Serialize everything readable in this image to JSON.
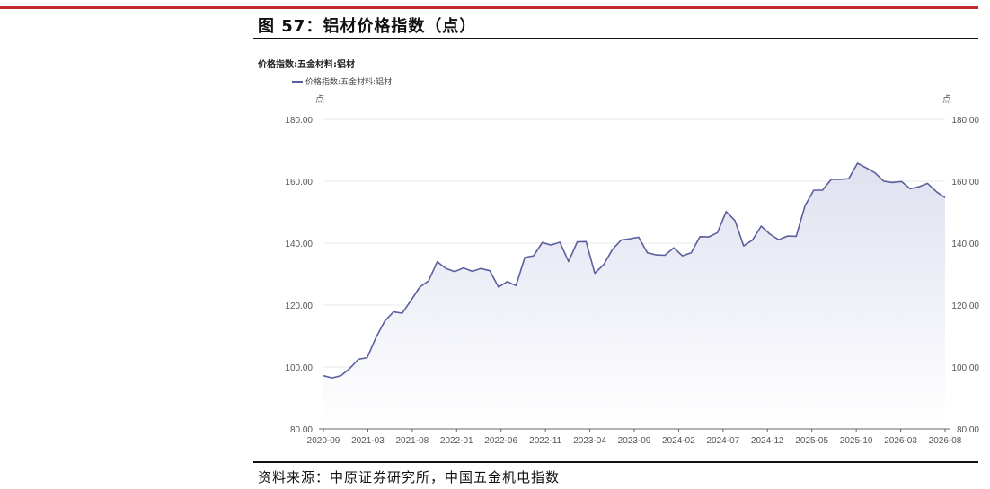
{
  "figure": {
    "title": "图 57：铝材价格指数（点）",
    "chart_header": "价格指数:五金材料:铝材",
    "source": "资料来源：中原证券研究所，中国五金机电指数"
  },
  "chart_data": {
    "type": "area",
    "title": "价格指数:五金材料:铝材",
    "legend": [
      "价格指数:五金材料:铝材"
    ],
    "legend_position": "top-left",
    "ylabel_left": "点",
    "ylabel_right": "点",
    "ylim": [
      80,
      180
    ],
    "yticks": [
      "80.00",
      "100.00",
      "120.00",
      "140.00",
      "160.00",
      "180.00"
    ],
    "grid": true,
    "x_tick_labels": [
      "2020-09",
      "2021-03",
      "2021-08",
      "2022-01",
      "2022-06",
      "2022-11",
      "2023-04",
      "2023-09",
      "2024-02",
      "2024-07",
      "2024-12",
      "2025-05",
      "2025-10",
      "2026-03",
      "2026-08"
    ],
    "colors": {
      "line": "#5b5f9e",
      "fill_top": "#dfe1f0",
      "fill_bottom": "#ffffff"
    },
    "series": [
      {
        "name": "价格指数:五金材料:铝材",
        "values": [
          97.2,
          96.5,
          97.2,
          99.5,
          102.5,
          103.0,
          109.5,
          114.8,
          117.8,
          117.4,
          121.5,
          125.8,
          127.8,
          134.0,
          131.8,
          130.8,
          132.0,
          130.9,
          131.8,
          131.1,
          125.8,
          127.6,
          126.3,
          135.4,
          135.9,
          140.2,
          139.4,
          140.3,
          134.1,
          140.4,
          140.5,
          130.3,
          133.0,
          137.9,
          141.0,
          141.4,
          141.9,
          136.9,
          136.2,
          136.1,
          138.5,
          135.9,
          136.9,
          142.1,
          142.0,
          143.4,
          150.2,
          147.3,
          139.1,
          141.0,
          145.5,
          142.9,
          141.1,
          142.3,
          142.2,
          152.1,
          157.1,
          157.1,
          160.6,
          160.6,
          160.8,
          165.8,
          164.3,
          162.7,
          160.0,
          159.6,
          159.9,
          157.6,
          158.2,
          159.3,
          156.6,
          154.7
        ]
      }
    ]
  }
}
